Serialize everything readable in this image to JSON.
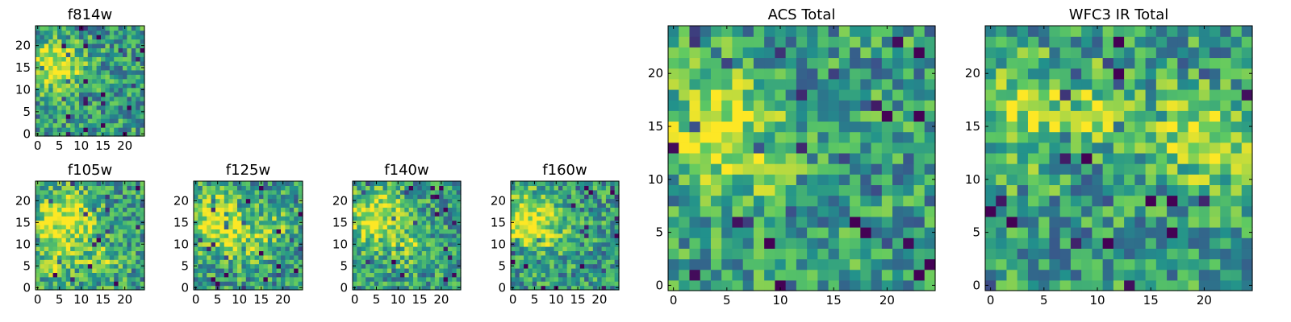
{
  "chart_data": [
    {
      "id": "f814w",
      "type": "heatmap",
      "title": "f814w",
      "grid_size": 25,
      "colormap": "viridis",
      "xticks": [
        0,
        5,
        10,
        15,
        20
      ],
      "yticks": [
        0,
        5,
        10,
        15,
        20
      ],
      "xlim": [
        -0.5,
        24.5
      ],
      "ylim": [
        -0.5,
        24.5
      ],
      "hot_spots": [
        [
          3,
          15,
          1.0,
          3.5
        ],
        [
          8,
          17,
          0.4,
          3.0
        ]
      ]
    },
    {
      "id": "f105w",
      "type": "heatmap",
      "title": "f105w",
      "grid_size": 25,
      "colormap": "viridis",
      "xticks": [
        0,
        5,
        10,
        15,
        20
      ],
      "yticks": [
        0,
        5,
        10,
        15,
        20
      ],
      "xlim": [
        -0.5,
        24.5
      ],
      "ylim": [
        -0.5,
        24.5
      ],
      "hot_spots": [
        [
          6,
          15,
          1.0,
          5.0
        ],
        [
          15,
          6,
          0.5,
          3.0
        ],
        [
          4,
          5,
          0.4,
          3.0
        ]
      ]
    },
    {
      "id": "f125w",
      "type": "heatmap",
      "title": "f125w",
      "grid_size": 25,
      "colormap": "viridis",
      "xticks": [
        0,
        5,
        10,
        15,
        20
      ],
      "yticks": [
        0,
        5,
        10,
        15,
        20
      ],
      "xlim": [
        -0.5,
        24.5
      ],
      "ylim": [
        -0.5,
        24.5
      ],
      "hot_spots": [
        [
          5,
          15,
          1.0,
          4.5
        ],
        [
          12,
          10,
          0.5,
          3.5
        ],
        [
          18,
          14,
          0.4,
          3.0
        ]
      ]
    },
    {
      "id": "f140w",
      "type": "heatmap",
      "title": "f140w",
      "grid_size": 25,
      "colormap": "viridis",
      "xticks": [
        0,
        5,
        10,
        15,
        20
      ],
      "yticks": [
        0,
        5,
        10,
        15,
        20
      ],
      "xlim": [
        -0.5,
        24.5
      ],
      "ylim": [
        -0.5,
        24.5
      ],
      "hot_spots": [
        [
          5,
          16,
          1.0,
          4.5
        ],
        [
          13,
          9,
          0.4,
          3.0
        ]
      ]
    },
    {
      "id": "f160w",
      "type": "heatmap",
      "title": "f160w",
      "grid_size": 25,
      "colormap": "viridis",
      "xticks": [
        0,
        5,
        10,
        15,
        20
      ],
      "yticks": [
        0,
        5,
        10,
        15,
        20
      ],
      "xlim": [
        -0.5,
        24.5
      ],
      "ylim": [
        -0.5,
        24.5
      ],
      "hot_spots": [
        [
          3,
          16,
          1.0,
          4.0
        ],
        [
          9,
          12,
          0.4,
          3.0
        ]
      ]
    },
    {
      "id": "acs_total",
      "type": "heatmap",
      "title": "ACS Total",
      "grid_size": 25,
      "colormap": "viridis",
      "xticks": [
        0,
        5,
        10,
        15,
        20
      ],
      "yticks": [
        0,
        5,
        10,
        15,
        20
      ],
      "xlim": [
        -0.5,
        24.5
      ],
      "ylim": [
        -0.5,
        24.5
      ],
      "hot_spots": [
        [
          4,
          15,
          1.0,
          3.5
        ],
        [
          8,
          10,
          0.3,
          3.0
        ]
      ]
    },
    {
      "id": "wfc3_ir_total",
      "type": "heatmap",
      "title": "WFC3 IR Total",
      "grid_size": 25,
      "colormap": "viridis",
      "xticks": [
        0,
        5,
        10,
        15,
        20
      ],
      "yticks": [
        0,
        5,
        10,
        15,
        20
      ],
      "xlim": [
        -0.5,
        24.5
      ],
      "ylim": [
        -0.5,
        24.5
      ],
      "hot_spots": [
        [
          20,
          14,
          0.9,
          3.0
        ],
        [
          3,
          16,
          0.7,
          3.5
        ],
        [
          11,
          17,
          0.5,
          2.5
        ]
      ]
    }
  ],
  "colors": {
    "viridis_stops": [
      "#440154",
      "#3b528b",
      "#21918c",
      "#5ec962",
      "#fde725"
    ],
    "axis": "#000000"
  }
}
